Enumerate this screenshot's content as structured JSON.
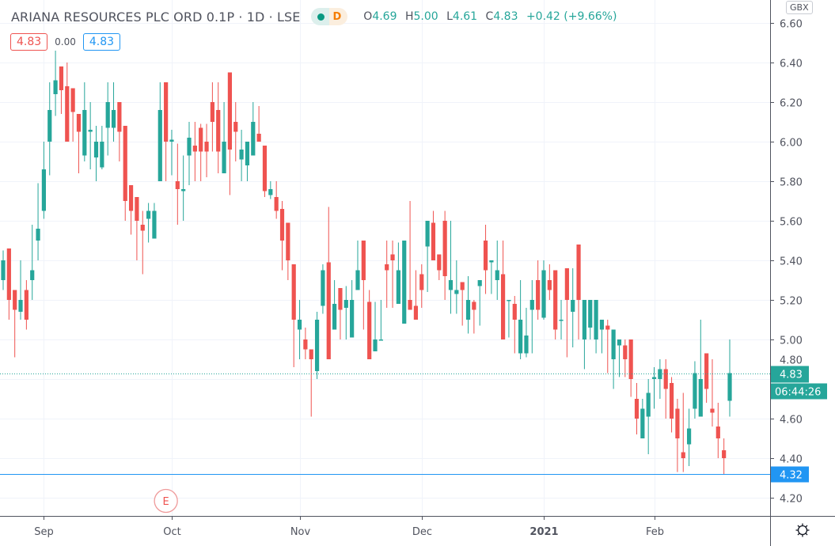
{
  "header": {
    "title": "ARIANA RESOURCES PLC ORD 0.1P · 1D · LSE",
    "market_status_icon": "market-open-dot",
    "delayed_label": "D",
    "ohlc": {
      "o_key": "O",
      "o": "4.69",
      "h_key": "H",
      "h": "5.00",
      "l_key": "L",
      "l": "4.61",
      "c_key": "C",
      "c": "4.83",
      "change": "+0.42 (+9.66%)"
    },
    "bid": "4.83",
    "spread": "0.00",
    "ask": "4.83"
  },
  "currency_label": "GBX",
  "settings_icon": "gear-icon",
  "colors": {
    "up": "#26a69a",
    "down": "#ef5350",
    "hline": "#2196f3",
    "grid": "#f0f3fa"
  },
  "chart_data": {
    "type": "candlestick",
    "interval": "1D",
    "ylim": [
      4.2,
      6.6
    ],
    "y_ticks": [
      "4.20",
      "4.40",
      "4.60",
      "4.80",
      "5.00",
      "5.20",
      "5.40",
      "5.60",
      "5.80",
      "6.00",
      "6.20",
      "6.40",
      "6.60"
    ],
    "x_ticks": [
      {
        "label": "Sep",
        "index": 7
      },
      {
        "label": "Oct",
        "index": 29
      },
      {
        "label": "Nov",
        "index": 51
      },
      {
        "label": "Dec",
        "index": 72
      },
      {
        "label": "2021",
        "index": 93
      },
      {
        "label": "Feb",
        "index": 112
      }
    ],
    "grid": true,
    "last_price": {
      "value": 4.83,
      "label": "4.83",
      "countdown": "06:44:26"
    },
    "horizontal_line": {
      "value": 4.32,
      "label": "4.32"
    },
    "earnings_marker": {
      "index": 28,
      "label": "E"
    },
    "candles_ohlc": [
      [
        5.3,
        5.45,
        5.25,
        5.4
      ],
      [
        5.46,
        5.46,
        5.1,
        5.2
      ],
      [
        5.25,
        5.25,
        4.91,
        5.15
      ],
      [
        5.14,
        5.4,
        5.1,
        5.2
      ],
      [
        5.25,
        5.3,
        5.05,
        5.1
      ],
      [
        5.3,
        5.58,
        5.2,
        5.35
      ],
      [
        5.5,
        5.79,
        5.4,
        5.56
      ],
      [
        5.65,
        6.0,
        5.61,
        5.86
      ],
      [
        6.0,
        6.3,
        5.83,
        6.16
      ],
      [
        6.24,
        6.46,
        6.13,
        6.31
      ],
      [
        6.38,
        6.38,
        6.14,
        6.26
      ],
      [
        6.28,
        6.4,
        6.0,
        6.0
      ],
      [
        6.27,
        6.27,
        6.0,
        6.15
      ],
      [
        6.14,
        6.14,
        5.84,
        6.05
      ],
      [
        5.93,
        6.3,
        5.9,
        6.16
      ],
      [
        6.05,
        6.2,
        5.86,
        6.06
      ],
      [
        5.92,
        6.08,
        5.8,
        6.0
      ],
      [
        5.87,
        6.08,
        5.86,
        6.0
      ],
      [
        6.07,
        6.3,
        5.93,
        6.2
      ],
      [
        6.07,
        6.3,
        6.0,
        6.16
      ],
      [
        6.2,
        6.2,
        5.9,
        6.05
      ],
      [
        6.08,
        6.08,
        5.6,
        5.7
      ],
      [
        5.78,
        5.78,
        5.53,
        5.65
      ],
      [
        5.72,
        5.72,
        5.4,
        5.6
      ],
      [
        5.58,
        5.65,
        5.33,
        5.55
      ],
      [
        5.61,
        5.69,
        5.49,
        5.65
      ],
      [
        5.51,
        5.69,
        5.51,
        5.65
      ],
      [
        5.8,
        6.3,
        5.8,
        6.16
      ],
      [
        6.3,
        6.3,
        5.8,
        6.0
      ],
      [
        6.0,
        6.06,
        5.83,
        6.01
      ],
      [
        5.8,
        5.99,
        5.58,
        5.76
      ],
      [
        5.75,
        5.93,
        5.6,
        5.76
      ],
      [
        5.93,
        6.1,
        5.78,
        6.02
      ],
      [
        5.98,
        6.1,
        5.8,
        5.95
      ],
      [
        6.07,
        6.09,
        5.8,
        5.95
      ],
      [
        6.0,
        6.09,
        5.82,
        5.95
      ],
      [
        6.2,
        6.3,
        5.95,
        6.1
      ],
      [
        6.16,
        6.3,
        5.84,
        5.95
      ],
      [
        5.84,
        6.2,
        5.84,
        6.0
      ],
      [
        6.35,
        6.35,
        5.73,
        5.96
      ],
      [
        6.1,
        6.2,
        5.9,
        6.05
      ],
      [
        5.91,
        6.06,
        5.8,
        5.96
      ],
      [
        5.88,
        6.0,
        5.8,
        6.0
      ],
      [
        5.93,
        6.2,
        5.93,
        6.1
      ],
      [
        6.04,
        6.18,
        6.0,
        6.0
      ],
      [
        5.98,
        5.98,
        5.72,
        5.75
      ],
      [
        5.73,
        5.8,
        5.71,
        5.76
      ],
      [
        5.72,
        5.8,
        5.61,
        5.65
      ],
      [
        5.66,
        5.7,
        5.35,
        5.5
      ],
      [
        5.59,
        5.59,
        5.3,
        5.4
      ],
      [
        5.38,
        5.38,
        4.86,
        5.1
      ],
      [
        5.05,
        5.2,
        4.9,
        5.1
      ],
      [
        5.0,
        5.06,
        4.9,
        4.95
      ],
      [
        4.95,
        4.95,
        4.61,
        4.9
      ],
      [
        4.84,
        5.14,
        4.8,
        5.1
      ],
      [
        5.17,
        5.38,
        5.13,
        5.35
      ],
      [
        5.39,
        5.67,
        4.9,
        4.9
      ],
      [
        5.05,
        5.3,
        5.05,
        5.18
      ],
      [
        5.26,
        5.26,
        5.0,
        5.15
      ],
      [
        5.16,
        5.27,
        5.0,
        5.2
      ],
      [
        5.01,
        5.3,
        5.01,
        5.2
      ],
      [
        5.25,
        5.5,
        5.25,
        5.35
      ],
      [
        5.5,
        5.5,
        5.05,
        5.3
      ],
      [
        5.19,
        5.25,
        4.9,
        4.9
      ],
      [
        4.94,
        5.19,
        4.94,
        5.0
      ],
      [
        5.0,
        5.2,
        5.0,
        5.0
      ],
      [
        5.38,
        5.5,
        5.16,
        5.35
      ],
      [
        5.43,
        5.5,
        5.16,
        5.4
      ],
      [
        5.18,
        5.49,
        5.18,
        5.35
      ],
      [
        5.08,
        5.5,
        5.08,
        5.5
      ],
      [
        5.2,
        5.7,
        5.15,
        5.15
      ],
      [
        5.17,
        5.35,
        5.1,
        5.1
      ],
      [
        5.33,
        5.38,
        5.16,
        5.25
      ],
      [
        5.47,
        5.6,
        5.24,
        5.6
      ],
      [
        5.59,
        5.65,
        5.4,
        5.4
      ],
      [
        5.43,
        5.43,
        5.3,
        5.35
      ],
      [
        5.6,
        5.65,
        5.2,
        5.32
      ],
      [
        5.25,
        5.6,
        5.13,
        5.3
      ],
      [
        5.23,
        5.4,
        5.13,
        5.25
      ],
      [
        5.29,
        5.29,
        5.07,
        5.25
      ],
      [
        5.1,
        5.32,
        5.03,
        5.2
      ],
      [
        5.19,
        5.2,
        5.03,
        5.15
      ],
      [
        5.27,
        5.3,
        5.07,
        5.3
      ],
      [
        5.5,
        5.58,
        5.23,
        5.35
      ],
      [
        5.39,
        5.4,
        5.23,
        5.4
      ],
      [
        5.3,
        5.5,
        5.2,
        5.35
      ],
      [
        5.33,
        5.5,
        5.0,
        5.0
      ],
      [
        5.2,
        5.2,
        5.01,
        5.2
      ],
      [
        5.18,
        5.22,
        4.93,
        5.1
      ],
      [
        4.93,
        5.3,
        4.9,
        5.1
      ],
      [
        4.93,
        5.16,
        4.91,
        5.02
      ],
      [
        5.15,
        5.3,
        4.93,
        5.2
      ],
      [
        5.3,
        5.4,
        5.1,
        5.15
      ],
      [
        5.11,
        5.4,
        5.1,
        5.35
      ],
      [
        5.3,
        5.38,
        5.2,
        5.25
      ],
      [
        5.35,
        5.35,
        5.0,
        5.05
      ],
      [
        5.1,
        5.2,
        5.0,
        5.1
      ],
      [
        5.36,
        5.36,
        4.91,
        5.2
      ],
      [
        5.14,
        5.36,
        4.96,
        5.2
      ],
      [
        5.48,
        5.48,
        5.0,
        5.2
      ],
      [
        5.0,
        5.2,
        4.85,
        5.2
      ],
      [
        5.06,
        5.2,
        5.0,
        5.2
      ],
      [
        5.0,
        5.2,
        4.93,
        5.2
      ],
      [
        5.05,
        5.1,
        4.93,
        5.1
      ],
      [
        5.07,
        5.1,
        4.83,
        5.05
      ],
      [
        4.9,
        5.05,
        4.75,
        5.05
      ],
      [
        4.97,
        5.0,
        4.81,
        5.0
      ],
      [
        4.97,
        5.0,
        4.81,
        4.9
      ],
      [
        5.0,
        5.0,
        4.71,
        4.8
      ],
      [
        4.7,
        4.78,
        4.52,
        4.6
      ],
      [
        4.5,
        4.7,
        4.5,
        4.65
      ],
      [
        4.61,
        4.8,
        4.42,
        4.73
      ],
      [
        4.8,
        4.86,
        4.65,
        4.81
      ],
      [
        4.8,
        4.9,
        4.7,
        4.85
      ],
      [
        4.85,
        4.9,
        4.6,
        4.75
      ],
      [
        4.78,
        4.81,
        4.53,
        4.6
      ],
      [
        4.65,
        4.7,
        4.33,
        4.5
      ],
      [
        4.43,
        4.73,
        4.33,
        4.4
      ],
      [
        4.47,
        4.65,
        4.36,
        4.55
      ],
      [
        4.65,
        4.89,
        4.6,
        4.83
      ],
      [
        4.61,
        5.1,
        4.61,
        4.8
      ],
      [
        4.93,
        4.93,
        4.68,
        4.75
      ],
      [
        4.65,
        4.9,
        4.56,
        4.63
      ],
      [
        4.56,
        4.68,
        4.4,
        4.5
      ],
      [
        4.44,
        4.5,
        4.32,
        4.4
      ],
      [
        4.69,
        5.0,
        4.61,
        4.83
      ]
    ]
  }
}
